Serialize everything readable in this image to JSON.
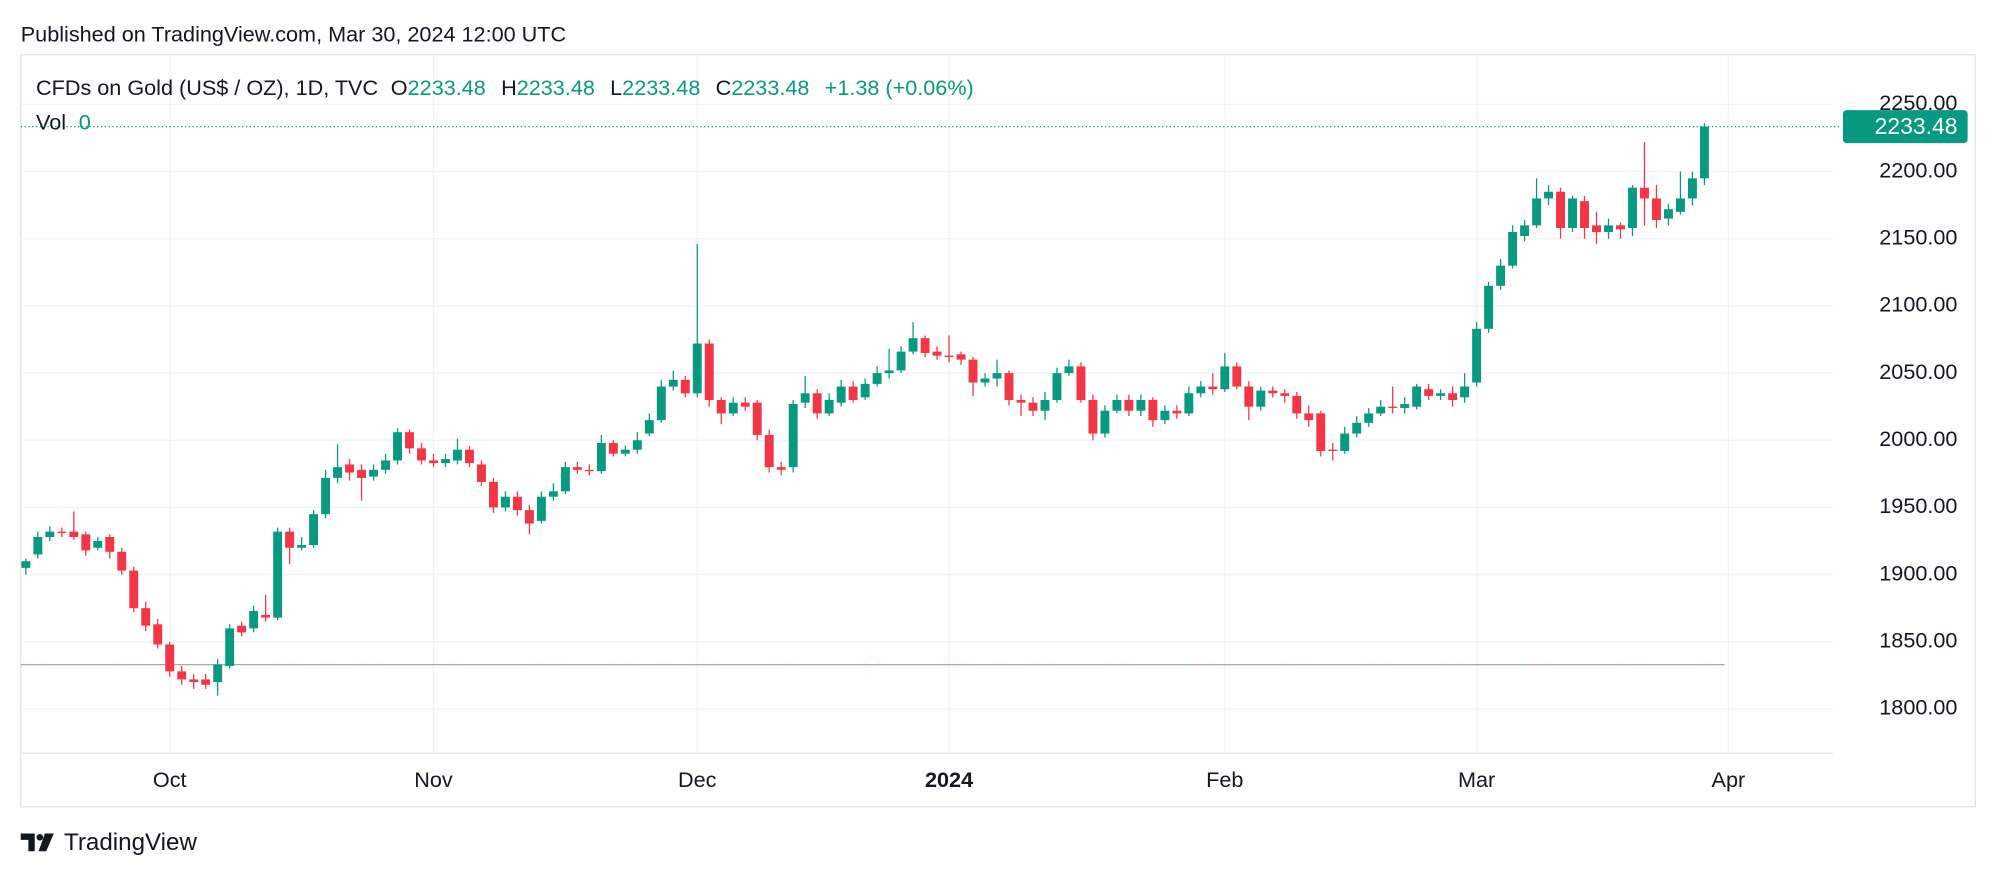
{
  "chart_data": {
    "type": "candlestick",
    "published": "Published on TradingView.com, Mar 30, 2024 12:00 UTC",
    "symbol": "CFDs on Gold (US$ / OZ), 1D, TVC",
    "header_ohlc": [
      {
        "label": "O",
        "value": 2233.48
      },
      {
        "label": "H",
        "value": 2233.48
      },
      {
        "label": "L",
        "value": 2233.48
      },
      {
        "label": "C",
        "value": 2233.48
      }
    ],
    "change": "+1.38 (+0.06%)",
    "volume_label": "Vol",
    "volume": 0,
    "brand": "TradingView",
    "up_color": "#089981",
    "down_color": "#f23645",
    "ylim": [
      1767,
      2287
    ],
    "yticks": [
      {
        "value": 1800,
        "label": "1800.00"
      },
      {
        "value": 1850,
        "label": "1850.00"
      },
      {
        "value": 1900,
        "label": "1900.00"
      },
      {
        "value": 1950,
        "label": "1950.00"
      },
      {
        "value": 2000,
        "label": "2000.00"
      },
      {
        "value": 2050,
        "label": "2050.00"
      },
      {
        "value": 2100,
        "label": "2100.00"
      },
      {
        "value": 2150,
        "label": "2150.00"
      },
      {
        "value": 2200,
        "label": "2200.00"
      },
      {
        "value": 2250,
        "label": "2250.00"
      }
    ],
    "grid": true,
    "start_price_line": 1833,
    "categories": [
      null,
      null,
      null,
      null,
      null,
      null,
      null,
      null,
      null,
      null,
      null,
      null,
      "Oct",
      null,
      null,
      null,
      null,
      null,
      null,
      null,
      null,
      null,
      null,
      null,
      null,
      null,
      null,
      null,
      null,
      null,
      null,
      null,
      null,
      null,
      "Nov",
      null,
      null,
      null,
      null,
      null,
      null,
      null,
      null,
      null,
      null,
      null,
      null,
      null,
      null,
      null,
      null,
      null,
      null,
      null,
      null,
      null,
      "Dec",
      null,
      null,
      null,
      null,
      null,
      null,
      null,
      null,
      null,
      null,
      null,
      null,
      null,
      null,
      null,
      null,
      null,
      null,
      null,
      null,
      "2024",
      null,
      null,
      null,
      null,
      null,
      null,
      null,
      null,
      null,
      null,
      null,
      null,
      null,
      null,
      null,
      null,
      null,
      null,
      null,
      null,
      null,
      null,
      "Feb",
      null,
      null,
      null,
      null,
      null,
      null,
      null,
      null,
      null,
      null,
      null,
      null,
      null,
      null,
      null,
      null,
      null,
      null,
      null,
      null,
      "Mar",
      null,
      null,
      null,
      null,
      null,
      null,
      null,
      null,
      null,
      null,
      null,
      null,
      null,
      null,
      null,
      null,
      null,
      null,
      null,
      null,
      "Apr"
    ],
    "open": [
      1905,
      1915,
      1928,
      1932,
      1932,
      1930,
      1920,
      1928,
      1917,
      1903,
      1875,
      1863,
      1848,
      1828,
      1822,
      1822,
      1820,
      1832,
      1862,
      1860,
      1870,
      1868,
      1932,
      1920,
      1922,
      1945,
      1972,
      1982,
      1978,
      1973,
      1978,
      1985,
      2006,
      1994,
      1985,
      1983,
      1985,
      1993,
      1982,
      1969,
      1950,
      1958,
      1948,
      1940,
      1958,
      1962,
      1980,
      1978,
      1977,
      1998,
      1990,
      1993,
      2005,
      2015,
      2040,
      2045,
      2035,
      2072,
      2030,
      2020,
      2028,
      2028,
      2004,
      1980,
      1980,
      2028,
      2035,
      2020,
      2028,
      2040,
      2032,
      2042,
      2050,
      2052,
      2066,
      2076,
      2066,
      2063,
      2064,
      2060,
      2043,
      2046,
      2050,
      2030,
      2028,
      2022,
      2030,
      2050,
      2055,
      2030,
      2005,
      2022,
      2030,
      2022,
      2030,
      2015,
      2022,
      2020,
      2035,
      2040,
      2038,
      2055,
      2040,
      2025,
      2037,
      2035,
      2033,
      2020,
      2020,
      1993,
      1992,
      2005,
      2013,
      2020,
      2025,
      2024,
      2025,
      2038,
      2033,
      2035,
      2032,
      2043,
      2083,
      2115,
      2130,
      2152,
      2160,
      2180,
      2185,
      2158,
      2178,
      2160,
      2155,
      2160,
      2158,
      2188,
      2180,
      2165,
      2170,
      2180,
      2195,
      null,
      null
    ],
    "high": [
      1912,
      1932,
      1936,
      1935,
      1947,
      1932,
      1928,
      1930,
      1920,
      1906,
      1880,
      1867,
      1850,
      1832,
      1826,
      1826,
      1837,
      1863,
      1865,
      1877,
      1885,
      1935,
      1935,
      1928,
      1948,
      1978,
      1997,
      1986,
      1982,
      1982,
      1990,
      2009,
      2008,
      1998,
      1990,
      1990,
      2001,
      1996,
      1985,
      1972,
      1962,
      1962,
      1952,
      1962,
      1968,
      1984,
      1984,
      1982,
      2004,
      2000,
      1996,
      2006,
      2020,
      2045,
      2052,
      2048,
      2146,
      2075,
      2032,
      2032,
      2032,
      2030,
      2008,
      1984,
      2030,
      2048,
      2038,
      2035,
      2045,
      2044,
      2046,
      2055,
      2068,
      2070,
      2088,
      2078,
      2070,
      2078,
      2066,
      2062,
      2050,
      2060,
      2052,
      2034,
      2032,
      2036,
      2054,
      2060,
      2058,
      2034,
      2026,
      2034,
      2034,
      2034,
      2032,
      2026,
      2026,
      2040,
      2044,
      2050,
      2065,
      2058,
      2044,
      2040,
      2040,
      2038,
      2036,
      2026,
      2022,
      1998,
      2010,
      2018,
      2024,
      2030,
      2040,
      2032,
      2042,
      2042,
      2038,
      2040,
      2050,
      2088,
      2118,
      2135,
      2160,
      2164,
      2195,
      2190,
      2188,
      2182,
      2182,
      2170,
      2165,
      2162,
      2190,
      2222,
      2190,
      2176,
      2200,
      2200,
      2236,
      null,
      null
    ],
    "low": [
      1900,
      1912,
      1925,
      1928,
      1926,
      1914,
      1918,
      1912,
      1900,
      1872,
      1858,
      1845,
      1824,
      1818,
      1815,
      1815,
      1810,
      1830,
      1854,
      1857,
      1865,
      1866,
      1908,
      1918,
      1920,
      1942,
      1968,
      1970,
      1955,
      1970,
      1975,
      1982,
      1990,
      1982,
      1980,
      1980,
      1982,
      1980,
      1966,
      1946,
      1947,
      1944,
      1930,
      1938,
      1955,
      1960,
      1975,
      1974,
      1975,
      1988,
      1988,
      1990,
      2003,
      2013,
      2037,
      2032,
      2032,
      2025,
      2012,
      2018,
      2022,
      2000,
      1976,
      1974,
      1976,
      2024,
      2016,
      2018,
      2025,
      2028,
      2030,
      2040,
      2046,
      2050,
      2064,
      2062,
      2060,
      2058,
      2056,
      2033,
      2040,
      2040,
      2026,
      2018,
      2018,
      2015,
      2028,
      2048,
      2028,
      2000,
      2002,
      2020,
      2018,
      2018,
      2010,
      2012,
      2016,
      2018,
      2032,
      2034,
      2036,
      2038,
      2015,
      2022,
      2032,
      2028,
      2016,
      2010,
      1988,
      1985,
      1990,
      2002,
      2010,
      2018,
      2020,
      2020,
      2023,
      2030,
      2030,
      2025,
      2028,
      2040,
      2080,
      2112,
      2128,
      2148,
      2158,
      2175,
      2150,
      2155,
      2150,
      2146,
      2150,
      2150,
      2152,
      2160,
      2158,
      2160,
      2168,
      2175,
      2190,
      null,
      null
    ],
    "close": [
      1910,
      1928,
      1932,
      1931,
      1928,
      1918,
      1925,
      1917,
      1903,
      1875,
      1862,
      1848,
      1828,
      1822,
      1820,
      1818,
      1833,
      1860,
      1857,
      1873,
      1868,
      1932,
      1920,
      1922,
      1945,
      1972,
      1980,
      1976,
      1972,
      1978,
      1985,
      2006,
      1994,
      1985,
      1983,
      1986,
      1993,
      1983,
      1969,
      1950,
      1958,
      1948,
      1938,
      1958,
      1962,
      1980,
      1978,
      1977,
      1998,
      1990,
      1993,
      2000,
      2015,
      2040,
      2045,
      2035,
      2072,
      2030,
      2020,
      2028,
      2025,
      2004,
      1980,
      1978,
      2027,
      2035,
      2020,
      2030,
      2040,
      2030,
      2042,
      2050,
      2052,
      2066,
      2076,
      2065,
      2063,
      2062,
      2060,
      2043,
      2046,
      2050,
      2030,
      2028,
      2022,
      2030,
      2050,
      2055,
      2030,
      2005,
      2022,
      2030,
      2022,
      2030,
      2015,
      2022,
      2020,
      2035,
      2040,
      2038,
      2055,
      2040,
      2025,
      2037,
      2035,
      2033,
      2020,
      2015,
      1992,
      1992,
      2005,
      2013,
      2020,
      2025,
      2024,
      2027,
      2040,
      2033,
      2035,
      2030,
      2040,
      2083,
      2115,
      2130,
      2155,
      2160,
      2180,
      2185,
      2158,
      2180,
      2158,
      2155,
      2160,
      2157,
      2188,
      2180,
      2164,
      2172,
      2180,
      2195,
      2233.48,
      null,
      null
    ]
  }
}
